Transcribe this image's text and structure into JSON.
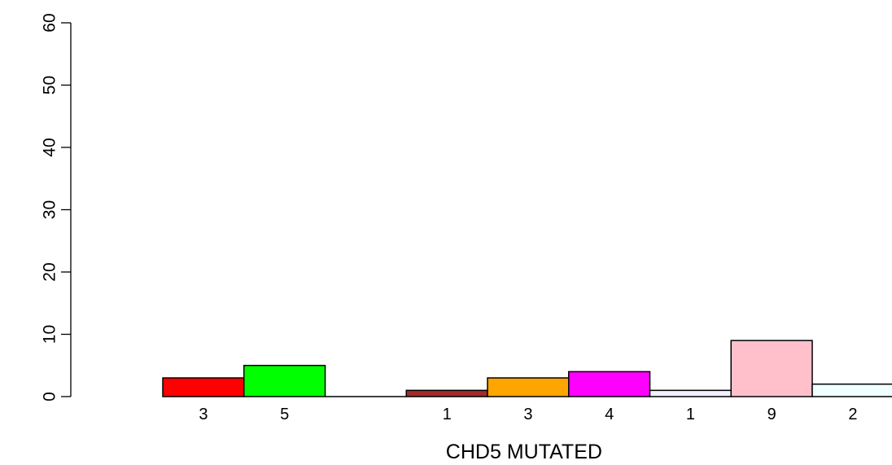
{
  "chart_data": {
    "type": "bar",
    "xlabel": "CHD5 MUTATED",
    "ylabel": "",
    "ylim": [
      0,
      60
    ],
    "yticks": [
      0,
      10,
      20,
      30,
      40,
      50,
      60
    ],
    "grid": false,
    "bars": [
      {
        "value": 3,
        "label": "3",
        "color": "#ff0000"
      },
      {
        "value": 5,
        "label": "5",
        "color": "#00ff00"
      },
      {
        "value": 0,
        "label": "",
        "color": "#0000ff"
      },
      {
        "value": 1,
        "label": "1",
        "color": "#a52a2a"
      },
      {
        "value": 3,
        "label": "3",
        "color": "#ffa500"
      },
      {
        "value": 4,
        "label": "4",
        "color": "#ff00ff"
      },
      {
        "value": 1,
        "label": "1",
        "color": "#f0f0ff"
      },
      {
        "value": 9,
        "label": "9",
        "color": "#ffc0cb"
      },
      {
        "value": 2,
        "label": "2",
        "color": "#f0ffff"
      }
    ]
  }
}
